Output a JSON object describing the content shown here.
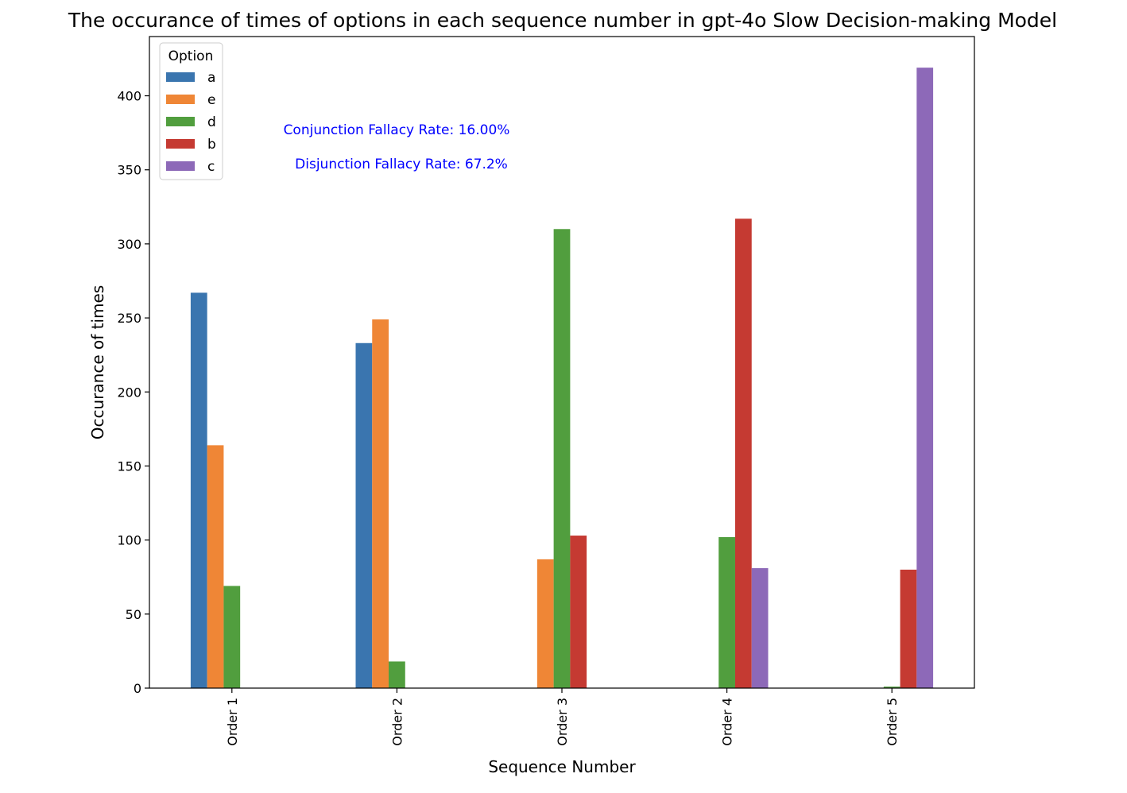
{
  "chart_data": {
    "type": "bar",
    "title": "The occurance of times of options in each sequence number in gpt-4o Slow Decision-making Model",
    "xlabel": "Sequence Number",
    "ylabel": "Occurance of times",
    "categories": [
      "Order 1",
      "Order 2",
      "Order 3",
      "Order 4",
      "Order 5"
    ],
    "ylim": [
      0,
      440
    ],
    "yticks": [
      0,
      50,
      100,
      150,
      200,
      250,
      300,
      350,
      400
    ],
    "grid": false,
    "legend": {
      "title": "Option",
      "placement": "top-left"
    },
    "series": [
      {
        "name": "a",
        "color": "#3a75af",
        "values": [
          267,
          233,
          0,
          0,
          0
        ]
      },
      {
        "name": "e",
        "color": "#ef8636",
        "values": [
          164,
          249,
          87,
          0,
          0
        ]
      },
      {
        "name": "d",
        "color": "#519e3e",
        "values": [
          69,
          18,
          310,
          102,
          1
        ]
      },
      {
        "name": "b",
        "color": "#c53a32",
        "values": [
          0,
          0,
          103,
          317,
          80
        ]
      },
      {
        "name": "c",
        "color": "#8d69b8",
        "values": [
          0,
          0,
          0,
          81,
          419
        ]
      }
    ],
    "annotations": [
      {
        "text": "Conjunction Fallacy Rate: 16.00%",
        "color": "#0000ff"
      },
      {
        "text": "Disjunction Fallacy Rate: 67.2%",
        "color": "#0000ff"
      }
    ]
  }
}
